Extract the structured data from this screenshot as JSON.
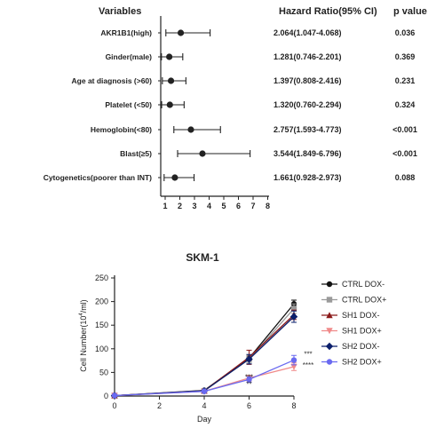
{
  "chart_data": [
    {
      "type": "forest",
      "headers": {
        "variables": "Variables",
        "hr": "Hazard Ratio(95% CI)",
        "p": "p value"
      },
      "xlim": [
        1,
        8
      ],
      "xticks": [
        "1",
        "2",
        "3",
        "4",
        "5",
        "6",
        "7",
        "8"
      ],
      "rows": [
        {
          "label": "AKR1B1(high)",
          "hr": 2.064,
          "lo": 1.047,
          "hi": 4.068,
          "hr_text": "2.064(1.047-4.068)",
          "p": "0.036"
        },
        {
          "label": "Ginder(male)",
          "hr": 1.281,
          "lo": 0.746,
          "hi": 2.201,
          "hr_text": "1.281(0.746-2.201)",
          "p": "0.369"
        },
        {
          "label": "Age at diagnosis (>60)",
          "hr": 1.397,
          "lo": 0.808,
          "hi": 2.416,
          "hr_text": "1.397(0.808-2.416)",
          "p": "0.231"
        },
        {
          "label": "Platelet (<50)",
          "hr": 1.32,
          "lo": 0.76,
          "hi": 2.294,
          "hr_text": "1.320(0.760-2.294)",
          "p": "0.324"
        },
        {
          "label": "Hemoglobin(<80)",
          "hr": 2.757,
          "lo": 1.593,
          "hi": 4.773,
          "hr_text": "2.757(1.593-4.773)",
          "p": "<0.001"
        },
        {
          "label": "Blast(≥5)",
          "hr": 3.544,
          "lo": 1.849,
          "hi": 6.796,
          "hr_text": "3.544(1.849-6.796)",
          "p": "<0.001"
        },
        {
          "label": "Cytogenetics(poorer than INT)",
          "hr": 1.661,
          "lo": 0.928,
          "hi": 2.973,
          "hr_text": "1.661(0.928-2.973)",
          "p": "0.088"
        }
      ]
    },
    {
      "type": "line",
      "title": "SKM-1",
      "xlabel": "Day",
      "ylabel": "Cell Number(10",
      "ylabel_sup": "4",
      "ylabel_tail": "/ml)",
      "x": [
        0,
        4,
        6,
        8
      ],
      "xticks": [
        "0",
        "2",
        "4",
        "6",
        "8"
      ],
      "yticks": [
        "0",
        "50",
        "100",
        "150",
        "200",
        "250"
      ],
      "xlim": [
        0,
        8
      ],
      "ylim": [
        0,
        250
      ],
      "series": [
        {
          "name": "CTRL DOX-",
          "color": "#111111",
          "marker": "circle",
          "values": [
            1,
            12,
            80,
            195
          ],
          "err": [
            0,
            2,
            6,
            8
          ]
        },
        {
          "name": "CTRL DOX+",
          "color": "#9a9a9a",
          "marker": "square",
          "values": [
            1,
            11,
            78,
            185
          ],
          "err": [
            0,
            2,
            8,
            10
          ]
        },
        {
          "name": "SH1 DOX-",
          "color": "#8b1a1a",
          "marker": "triangle-up",
          "values": [
            1,
            11,
            82,
            172
          ],
          "err": [
            0,
            2,
            15,
            10
          ]
        },
        {
          "name": "SH1 DOX+",
          "color": "#f08a8a",
          "marker": "triangle-down",
          "values": [
            1,
            10,
            38,
            62
          ],
          "err": [
            0,
            2,
            6,
            8
          ]
        },
        {
          "name": "SH2 DOX-",
          "color": "#0b1f6b",
          "marker": "diamond",
          "values": [
            1,
            11,
            78,
            168
          ],
          "err": [
            0,
            2,
            10,
            12
          ]
        },
        {
          "name": "SH2 DOX+",
          "color": "#6a6af0",
          "marker": "circle",
          "values": [
            1,
            10,
            35,
            76
          ],
          "err": [
            0,
            2,
            6,
            10
          ]
        }
      ],
      "annotations": [
        {
          "text": "***",
          "x": 6,
          "y": 40
        },
        {
          "text": "**",
          "x": 6,
          "y": 25
        },
        {
          "text": "***",
          "x": 8,
          "y": 89
        },
        {
          "text": "****",
          "x": 8,
          "y": 66
        }
      ]
    }
  ]
}
